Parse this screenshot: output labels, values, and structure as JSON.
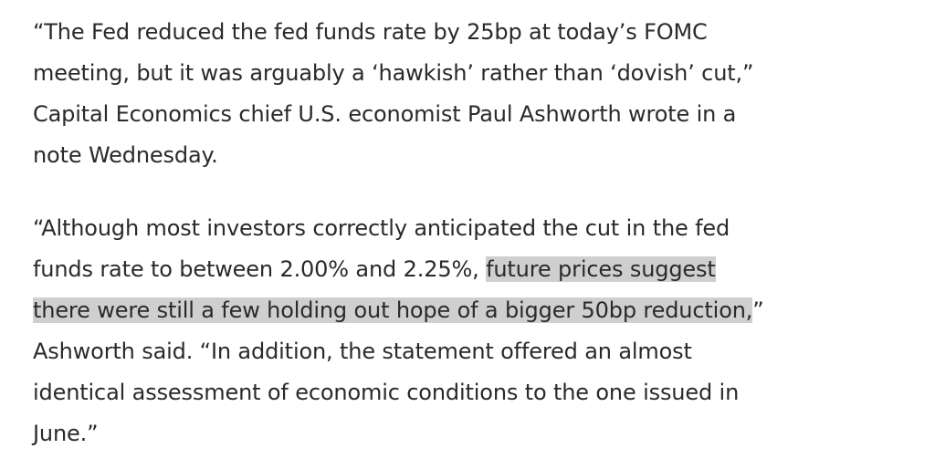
{
  "paragraph_1": {
    "lines": [
      "“The Fed reduced the fed funds rate by 25bp at today’s FOMC",
      "meeting, but it was arguably a ‘hawkish’ rather than ‘dovish’ cut,”",
      "Capital Economics chief U.S. economist Paul Ashworth wrote in a",
      "note Wednesday."
    ]
  },
  "paragraph_2": {
    "line_1": "“Although most investors correctly anticipated the cut in the fed",
    "line_2_plain": "funds rate to between 2.00% and 2.25%, ",
    "line_2_highlight": "future prices suggest",
    "line_3_highlight": "there were still a few holding out hope of a bigger 50bp reduction,",
    "line_3_plain": "”",
    "line_4": "Ashworth said. “In addition, the statement offered an almost",
    "line_5": "identical assessment of economic conditions to the one issued in",
    "line_6": "June.”"
  },
  "colors": {
    "text": "#2a2a2a",
    "highlight": "#cfcfcf",
    "background": "#ffffff"
  }
}
